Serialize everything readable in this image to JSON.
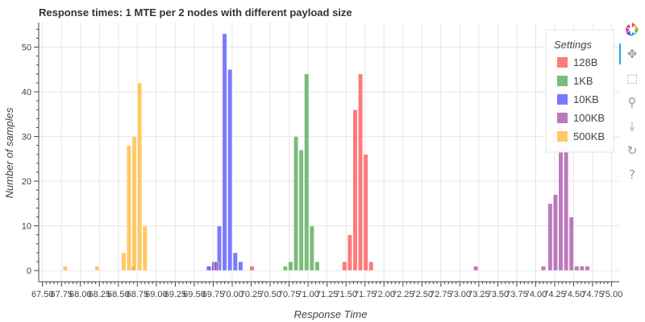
{
  "chart_data": {
    "type": "bar",
    "title": "Response times: 1 MTE per 2 nodes with different payload size",
    "xlabel": "Response Time",
    "ylabel": "Number of samples",
    "xlim": [
      67.45,
      75.1
    ],
    "ylim": [
      -2.5,
      55.5
    ],
    "bin_width": 0.07,
    "x_ticks": [
      67.5,
      67.75,
      68.0,
      68.25,
      68.5,
      68.75,
      69.0,
      69.25,
      69.5,
      69.75,
      70.0,
      70.25,
      70.5,
      70.75,
      71.0,
      71.25,
      71.5,
      71.75,
      72.0,
      72.25,
      72.5,
      72.75,
      73.0,
      73.25,
      73.5,
      73.75,
      74.0,
      74.25,
      74.5,
      74.75,
      75.0
    ],
    "x_tick_labels": [
      "67.50",
      "67.75",
      "68.00",
      "68.25",
      "68.50",
      "68.75",
      "69.00",
      "69.25",
      "69.50",
      "69.75",
      "70.00",
      "70.25",
      "70.50",
      "70.75",
      "71.00",
      "71.25",
      "71.50",
      "71.75",
      "72.00",
      "72.25",
      "72.50",
      "72.75",
      "73.00",
      "73.25",
      "73.50",
      "73.75",
      "74.00",
      "74.25",
      "74.50",
      "74.75",
      "75.00"
    ],
    "y_ticks": [
      0,
      10,
      20,
      30,
      40,
      50
    ],
    "y_tick_labels": [
      "0",
      "10",
      "20",
      "30",
      "40",
      "50"
    ],
    "grid": true,
    "legend_title": "Settings",
    "legend_position": "top-right",
    "series": [
      {
        "name": "128B",
        "color": "#ff4d4d",
        "x": [
          69.72,
          70.26,
          71.48,
          71.55,
          71.62,
          71.69,
          71.76,
          71.83
        ],
        "values": [
          1,
          1,
          2,
          8,
          36,
          44,
          26,
          2
        ]
      },
      {
        "name": "1KB",
        "color": "#4da64d",
        "x": [
          70.7,
          70.77,
          70.84,
          70.91,
          70.98,
          71.05,
          71.12,
          71.19
        ],
        "values": [
          1,
          2,
          30,
          27,
          44,
          10,
          2,
          0
        ]
      },
      {
        "name": "10KB",
        "color": "#4d4dff",
        "x": [
          69.69,
          69.76,
          69.83,
          69.9,
          69.97,
          70.04,
          70.11,
          70.18
        ],
        "values": [
          1,
          2,
          10,
          53,
          45,
          4,
          2,
          0
        ]
      },
      {
        "name": "100KB",
        "color": "#a64da6",
        "x": [
          68.69,
          69.79,
          73.21,
          74.1,
          74.19,
          74.26,
          74.33,
          74.4,
          74.47,
          74.54,
          74.61,
          74.68
        ],
        "values": [
          1,
          2,
          1,
          1,
          15,
          17,
          40,
          30,
          12,
          1,
          1,
          1
        ]
      },
      {
        "name": "500KB",
        "color": "#ffb733",
        "x": [
          67.8,
          68.22,
          68.57,
          68.64,
          68.71,
          68.78,
          68.85,
          68.92
        ],
        "values": [
          1,
          1,
          4,
          28,
          30,
          42,
          10,
          0
        ]
      }
    ]
  },
  "toolbar": {
    "logo": "bokeh-logo-icon",
    "tools": [
      {
        "name": "pan-icon",
        "glyph": "✥"
      },
      {
        "name": "box-zoom-icon",
        "glyph": "⬚"
      },
      {
        "name": "wheel-zoom-icon",
        "glyph": "⚲"
      },
      {
        "name": "save-icon",
        "glyph": "⤓"
      },
      {
        "name": "reset-icon",
        "glyph": "↻"
      },
      {
        "name": "help-icon",
        "glyph": "?"
      }
    ],
    "accent": "#26aae1"
  }
}
